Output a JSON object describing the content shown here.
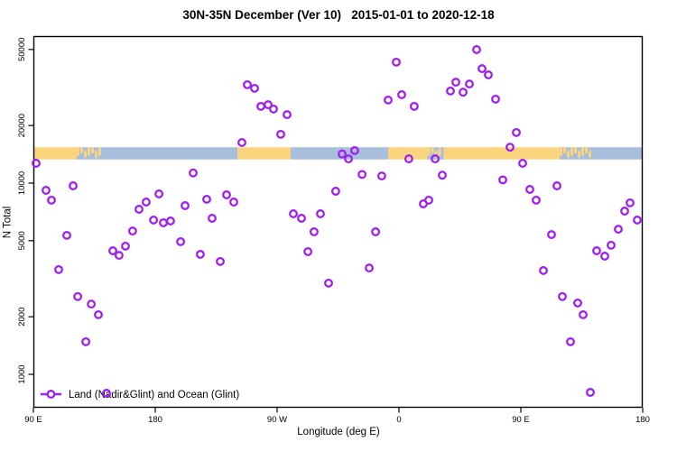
{
  "chart_data": {
    "type": "scatter",
    "title": "30N-35N December (Ver 10)   2015-01-01 to 2020-12-18",
    "xlabel": "Longitude (deg E)",
    "ylabel": "N Total",
    "x_axis": {
      "range_deg": [
        0,
        450
      ],
      "ticks": [
        {
          "deg": 0,
          "label": "90 E"
        },
        {
          "deg": 90,
          "label": "180"
        },
        {
          "deg": 180,
          "label": "90 W"
        },
        {
          "deg": 270,
          "label": "0"
        },
        {
          "deg": 360,
          "label": "90 E"
        },
        {
          "deg": 450,
          "label": "180"
        }
      ]
    },
    "y_axis": {
      "scale": "log",
      "range": [
        700,
        58000
      ],
      "ticks": [
        {
          "value": 1000,
          "label": "1000"
        },
        {
          "value": 2000,
          "label": "2000"
        },
        {
          "value": 5000,
          "label": "5000"
        },
        {
          "value": 10000,
          "label": "10000"
        },
        {
          "value": 20000,
          "label": "20000"
        },
        {
          "value": 50000,
          "label": "50000"
        }
      ]
    },
    "legend": {
      "label": "Land (Nadir&Glint) and Ocean (Glint)",
      "position": "bottom-left"
    },
    "map_strip": {
      "description": "land/ocean surface band drawn across plot",
      "top_value": 15400,
      "bottom_value": 13300,
      "segments": [
        {
          "from": 0,
          "to": 32,
          "surface": "land"
        },
        {
          "from": 32,
          "to": 51,
          "surface": "mixed"
        },
        {
          "from": 51,
          "to": 150.7,
          "surface": "ocean"
        },
        {
          "from": 150.7,
          "to": 190,
          "surface": "land"
        },
        {
          "from": 190,
          "to": 262,
          "surface": "ocean"
        },
        {
          "from": 262,
          "to": 291,
          "surface": "land"
        },
        {
          "from": 291,
          "to": 303,
          "surface": "mixed"
        },
        {
          "from": 303,
          "to": 388.7,
          "surface": "land"
        },
        {
          "from": 388.7,
          "to": 412,
          "surface": "mixed"
        },
        {
          "from": 412,
          "to": 450,
          "surface": "ocean"
        }
      ]
    },
    "series": [
      {
        "name": "Land (Nadir&Glint) and Ocean (Glint)",
        "marker": "open-circle",
        "color": "#A020F0",
        "points": [
          [
            2,
            12700
          ],
          [
            9.3,
            9170
          ],
          [
            13.3,
            8140
          ],
          [
            18.7,
            3530
          ],
          [
            24.7,
            5330
          ],
          [
            29.3,
            9680
          ],
          [
            32.7,
            2550
          ],
          [
            38.7,
            1480
          ],
          [
            42.7,
            2330
          ],
          [
            48,
            2050
          ],
          [
            54,
            796
          ],
          [
            58.7,
            4430
          ],
          [
            63.3,
            4190
          ],
          [
            68,
            4680
          ],
          [
            73.3,
            5620
          ],
          [
            78,
            7300
          ],
          [
            83.3,
            7960
          ],
          [
            88.7,
            6410
          ],
          [
            92.7,
            8780
          ],
          [
            96,
            6200
          ],
          [
            101.3,
            6340
          ],
          [
            108.7,
            4940
          ],
          [
            112,
            7620
          ],
          [
            118,
            11300
          ],
          [
            123.3,
            4240
          ],
          [
            128,
            8230
          ],
          [
            132,
            6550
          ],
          [
            138,
            3890
          ],
          [
            142.7,
            8680
          ],
          [
            148,
            7960
          ],
          [
            154,
            16300
          ],
          [
            158,
            32700
          ],
          [
            163.3,
            31300
          ],
          [
            168,
            25200
          ],
          [
            173.3,
            25700
          ],
          [
            177.3,
            24400
          ],
          [
            182.7,
            18000
          ],
          [
            187.3,
            22800
          ],
          [
            192,
            6910
          ],
          [
            198,
            6550
          ],
          [
            202.7,
            4380
          ],
          [
            207.3,
            5560
          ],
          [
            212,
            6910
          ],
          [
            218,
            3000
          ],
          [
            223.3,
            9070
          ],
          [
            228,
            14200
          ],
          [
            232.7,
            13400
          ],
          [
            237.3,
            14800
          ],
          [
            242.7,
            11100
          ],
          [
            248,
            3600
          ],
          [
            252.7,
            5560
          ],
          [
            257.3,
            10900
          ],
          [
            262,
            27200
          ],
          [
            268,
            42900
          ],
          [
            272,
            29000
          ],
          [
            277.3,
            13400
          ],
          [
            281.3,
            25200
          ],
          [
            288,
            7790
          ],
          [
            292,
            8140
          ],
          [
            296.7,
            13400
          ],
          [
            302,
            11000
          ],
          [
            308,
            30300
          ],
          [
            312,
            33700
          ],
          [
            317.3,
            29900
          ],
          [
            322,
            33000
          ],
          [
            327.3,
            49900
          ],
          [
            331.3,
            39700
          ],
          [
            336,
            36800
          ],
          [
            341.3,
            27500
          ],
          [
            346.7,
            10400
          ],
          [
            352,
            15400
          ],
          [
            356.7,
            18400
          ],
          [
            361.3,
            12700
          ],
          [
            366.7,
            9270
          ],
          [
            371.3,
            8140
          ],
          [
            376.7,
            3490
          ],
          [
            382.7,
            5380
          ],
          [
            386.7,
            9680
          ],
          [
            390.7,
            2550
          ],
          [
            396.7,
            1480
          ],
          [
            402,
            2360
          ],
          [
            406,
            2050
          ],
          [
            411.3,
            805
          ],
          [
            416,
            4430
          ],
          [
            422,
            4150
          ],
          [
            426.7,
            4730
          ],
          [
            432,
            5740
          ],
          [
            436.7,
            7140
          ],
          [
            440.7,
            7880
          ],
          [
            446,
            6410
          ]
        ]
      }
    ]
  },
  "colors": {
    "background": "#ffffff",
    "point": "#A020F0",
    "land": "#FBD57E",
    "ocean": "#A7BEDC",
    "axis": "#000000",
    "text": "#000000"
  }
}
